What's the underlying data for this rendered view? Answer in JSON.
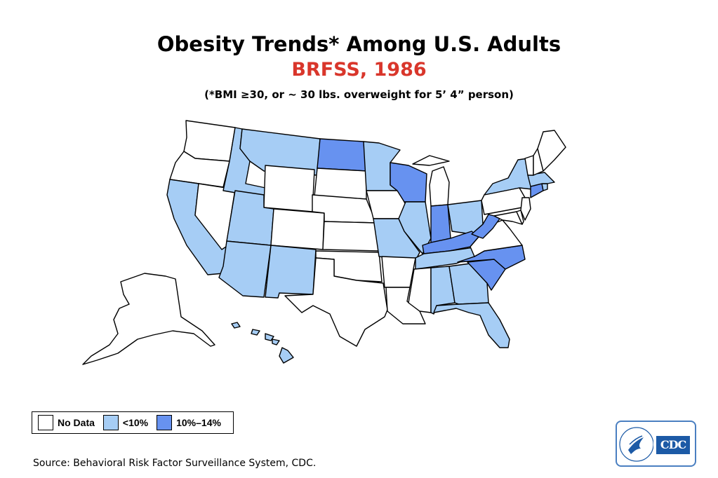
{
  "title": "Obesity Trends* Among U.S. Adults",
  "subtitle": "BRFSS, 1986",
  "note": "(*BMI ≥30, or ~ 30 lbs. overweight for 5’ 4” person)",
  "colors": {
    "no_data": "#ffffff",
    "under_10": "#a6cdf5",
    "ten_to_14": "#6792f0",
    "subtitle": "#d9362b",
    "logo_border": "#4a7fc1",
    "logo_fill": "#1c5aa6"
  },
  "legend": [
    {
      "label": "No Data",
      "color_key": "no_data"
    },
    {
      "label": "<10%",
      "color_key": "under_10"
    },
    {
      "label": "10%–14%",
      "color_key": "ten_to_14"
    }
  ],
  "states": {
    "WA": "no_data",
    "OR": "no_data",
    "CA": "under_10",
    "NV": "no_data",
    "ID": "under_10",
    "MT": "under_10",
    "WY": "no_data",
    "UT": "under_10",
    "AZ": "under_10",
    "CO": "no_data",
    "NM": "under_10",
    "ND": "ten_to_14",
    "SD": "no_data",
    "NE": "no_data",
    "KS": "no_data",
    "OK": "no_data",
    "TX": "no_data",
    "MN": "under_10",
    "IA": "no_data",
    "MO": "under_10",
    "AR": "no_data",
    "LA": "no_data",
    "WI": "ten_to_14",
    "IL": "under_10",
    "MI": "no_data",
    "IN": "ten_to_14",
    "OH": "under_10",
    "KY": "ten_to_14",
    "TN": "under_10",
    "MS": "no_data",
    "AL": "under_10",
    "GA": "under_10",
    "FL": "under_10",
    "SC": "ten_to_14",
    "NC": "ten_to_14",
    "VA": "no_data",
    "WV": "ten_to_14",
    "MD": "no_data",
    "DE": "no_data",
    "NJ": "no_data",
    "PA": "no_data",
    "NY": "under_10",
    "CT": "ten_to_14",
    "RI": "under_10",
    "MA": "under_10",
    "VT": "no_data",
    "NH": "no_data",
    "ME": "no_data",
    "AK": "no_data",
    "HI": "under_10"
  },
  "source": "Source: Behavioral Risk Factor Surveillance System, CDC.",
  "logo": {
    "text": "CDC"
  }
}
